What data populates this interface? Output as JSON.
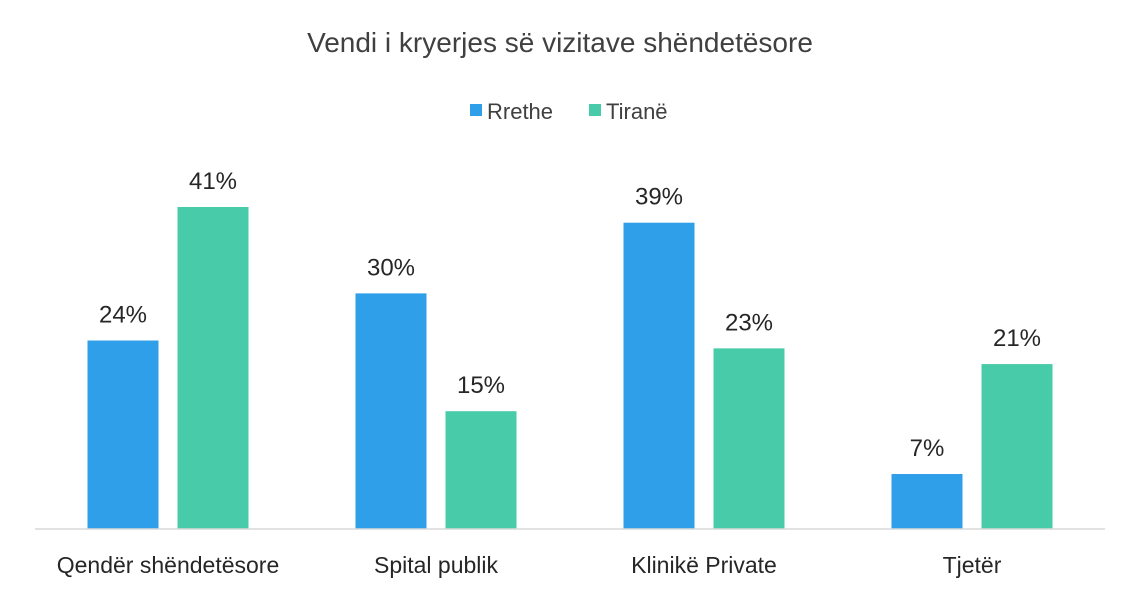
{
  "chart_data": {
    "type": "bar",
    "title": "Vendi i kryerjes së vizitave shëndetësore",
    "categories": [
      "Qendër shëndetësore",
      "Spital publik",
      "Klinikë Private",
      "Tjetër"
    ],
    "series": [
      {
        "name": "Rrethe",
        "values": [
          24,
          30,
          39,
          7
        ],
        "color": "#2E9FE8"
      },
      {
        "name": "Tiranë",
        "values": [
          41,
          15,
          23,
          21
        ],
        "color": "#48CBA9"
      }
    ],
    "value_suffix": "%",
    "ylim": [
      0,
      50
    ],
    "grid": false,
    "legend_position": "top-center"
  }
}
